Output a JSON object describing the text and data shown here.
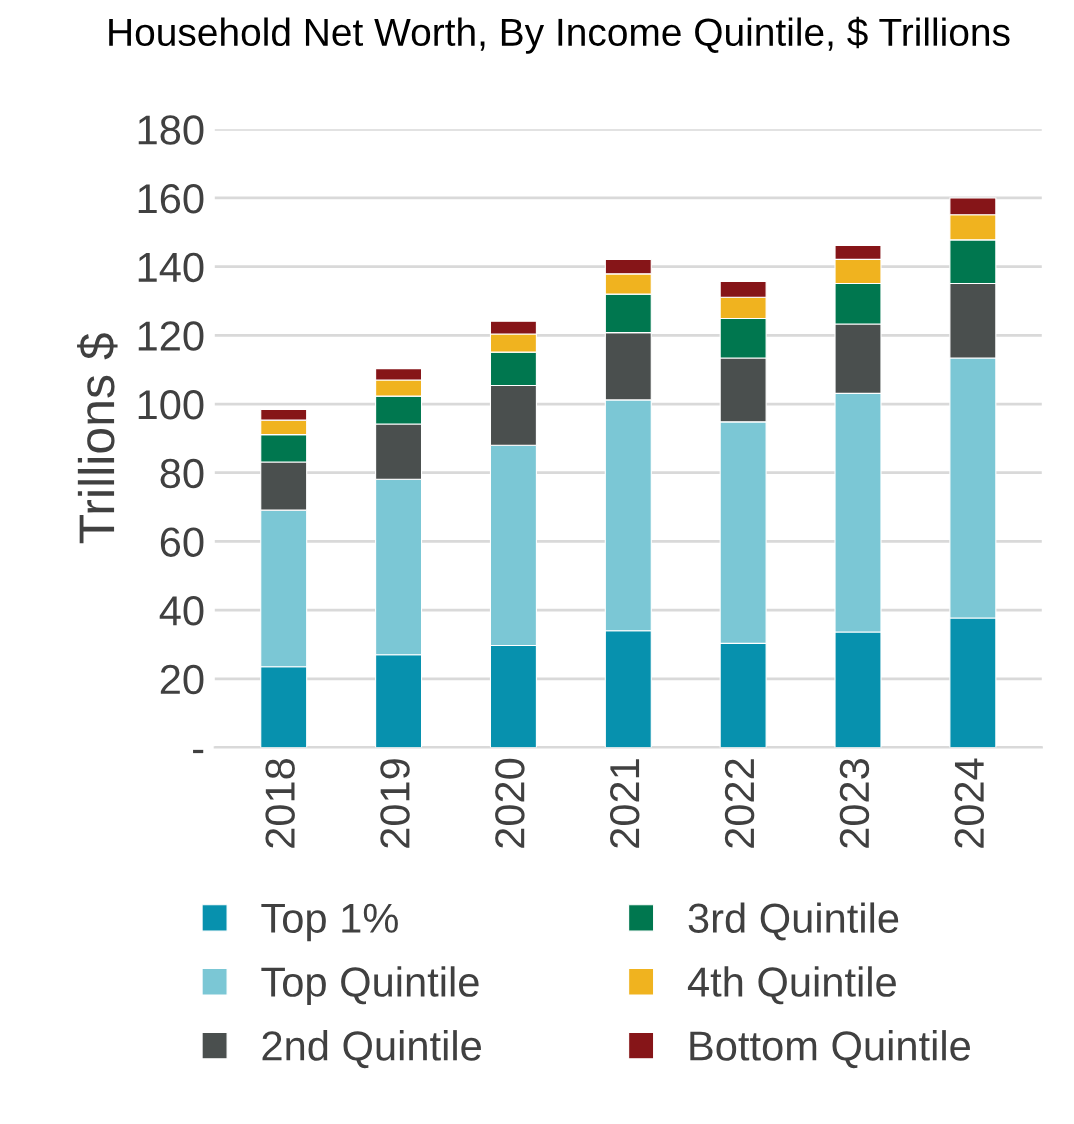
{
  "chart_data": {
    "type": "bar",
    "stacked": true,
    "title": "Household Net Worth, By Income Quintile, $ Trillions",
    "ylabel": "Trillions $",
    "categories": [
      "2018",
      "2019",
      "2020",
      "2021",
      "2022",
      "2023",
      "2024"
    ],
    "series": [
      {
        "name": "Top 1%",
        "color": "#0791ae",
        "values": [
          23.5,
          27.0,
          29.7,
          34.0,
          30.3,
          33.6,
          37.7
        ]
      },
      {
        "name": "Top Quintile",
        "color": "#7bc7d5",
        "values": [
          45.6,
          51.1,
          58.3,
          67.2,
          64.5,
          69.5,
          75.7
        ]
      },
      {
        "name": "2nd Quintile",
        "color": "#4a4f4e",
        "values": [
          14.0,
          16.1,
          17.4,
          19.6,
          18.6,
          20.2,
          21.7
        ]
      },
      {
        "name": "3rd Quintile",
        "color": "#00774f",
        "values": [
          8.0,
          8.1,
          9.7,
          11.2,
          11.5,
          11.8,
          12.7
        ]
      },
      {
        "name": "4th Quintile",
        "color": "#f0b31f",
        "values": [
          4.2,
          4.7,
          5.3,
          5.9,
          6.2,
          7.0,
          7.3
        ]
      },
      {
        "name": "Bottom Quintile",
        "color": "#861518",
        "values": [
          3.1,
          3.3,
          3.7,
          4.2,
          4.6,
          4.1,
          4.9
        ]
      }
    ],
    "ylim": [
      0,
      180
    ],
    "yticks": [
      {
        "value": 0,
        "label": "-"
      },
      20,
      40,
      60,
      80,
      100,
      120,
      140,
      160,
      180
    ],
    "grid": "y",
    "legend": "bottom"
  }
}
